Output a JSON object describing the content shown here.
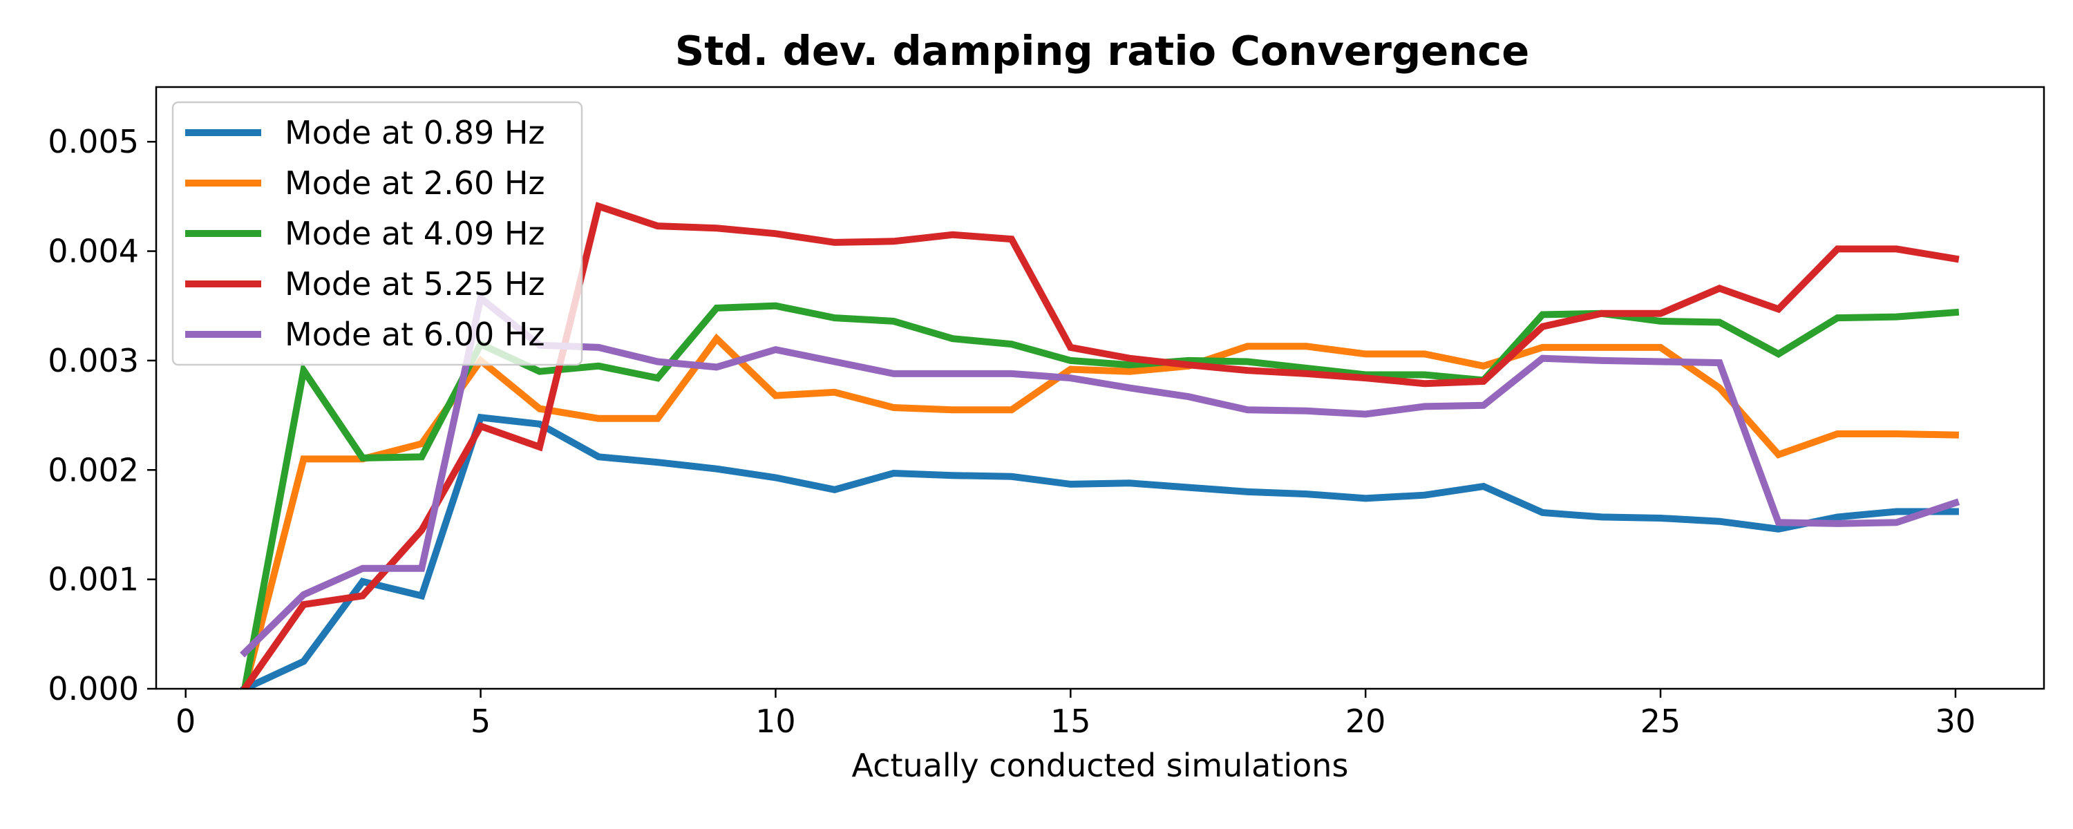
{
  "chart_data": {
    "type": "line",
    "title": "Std. dev. damping ratio Convergence",
    "xlabel": "Actually conducted simulations",
    "ylabel": "",
    "xlim": [
      -0.5,
      31.5
    ],
    "ylim": [
      0.0,
      0.0055
    ],
    "xticks": [
      0,
      5,
      10,
      15,
      20,
      25,
      30
    ],
    "xtick_labels": [
      "0",
      "5",
      "10",
      "15",
      "20",
      "25",
      "30"
    ],
    "yticks": [
      0.0,
      0.001,
      0.002,
      0.003,
      0.004,
      0.005
    ],
    "ytick_labels": [
      "0.000",
      "0.001",
      "0.002",
      "0.003",
      "0.004",
      "0.005"
    ],
    "grid": false,
    "legend_position": "upper-left",
    "x": [
      1,
      2,
      3,
      4,
      5,
      6,
      7,
      8,
      9,
      10,
      11,
      12,
      13,
      14,
      15,
      16,
      17,
      18,
      19,
      20,
      21,
      22,
      23,
      24,
      25,
      26,
      27,
      28,
      29,
      30
    ],
    "series": [
      {
        "name": "Mode at 0.89 Hz",
        "color": "#1f77b4",
        "values": [
          0.0,
          0.00025,
          0.00098,
          0.00085,
          0.00248,
          0.00242,
          0.00212,
          0.00207,
          0.00201,
          0.00193,
          0.00182,
          0.00197,
          0.00195,
          0.00194,
          0.00187,
          0.00188,
          0.00184,
          0.0018,
          0.00178,
          0.00174,
          0.00177,
          0.00185,
          0.00161,
          0.00157,
          0.00156,
          0.00153,
          0.00146,
          0.00157,
          0.00162,
          0.00162
        ]
      },
      {
        "name": "Mode at 2.60 Hz",
        "color": "#ff7f0e",
        "values": [
          0.0,
          0.0021,
          0.0021,
          0.00224,
          0.003,
          0.00256,
          0.00247,
          0.00247,
          0.0032,
          0.00268,
          0.00271,
          0.00257,
          0.00255,
          0.00255,
          0.00292,
          0.0029,
          0.00295,
          0.00313,
          0.00313,
          0.00306,
          0.00306,
          0.00295,
          0.00312,
          0.00312,
          0.00312,
          0.00275,
          0.00214,
          0.00233,
          0.00233,
          0.00232
        ]
      },
      {
        "name": "Mode at 4.09 Hz",
        "color": "#2ca02c",
        "values": [
          0.0,
          0.00291,
          0.00211,
          0.00212,
          0.00315,
          0.0029,
          0.00295,
          0.00284,
          0.00348,
          0.0035,
          0.00339,
          0.00336,
          0.0032,
          0.00315,
          0.003,
          0.00296,
          0.003,
          0.00299,
          0.00293,
          0.00287,
          0.00287,
          0.00282,
          0.00342,
          0.00343,
          0.00336,
          0.00335,
          0.00306,
          0.00339,
          0.0034,
          0.00344
        ]
      },
      {
        "name": "Mode at 5.25 Hz",
        "color": "#d62728",
        "values": [
          0.0,
          0.00077,
          0.00085,
          0.00145,
          0.0024,
          0.00221,
          0.00441,
          0.00423,
          0.00421,
          0.00416,
          0.00408,
          0.00409,
          0.00415,
          0.00411,
          0.00312,
          0.00302,
          0.00296,
          0.00291,
          0.00288,
          0.00284,
          0.00279,
          0.00281,
          0.00331,
          0.00343,
          0.00343,
          0.00366,
          0.00347,
          0.00402,
          0.00402,
          0.00393
        ]
      },
      {
        "name": "Mode at 6.00 Hz",
        "color": "#9467bd",
        "values": [
          0.00033,
          0.00086,
          0.0011,
          0.0011,
          0.00357,
          0.00314,
          0.00312,
          0.00299,
          0.00294,
          0.0031,
          0.00299,
          0.00288,
          0.00288,
          0.00288,
          0.00284,
          0.00275,
          0.00267,
          0.00255,
          0.00254,
          0.00251,
          0.00258,
          0.00259,
          0.00302,
          0.003,
          0.00299,
          0.00298,
          0.00152,
          0.00151,
          0.00152,
          0.0017
        ]
      }
    ]
  }
}
